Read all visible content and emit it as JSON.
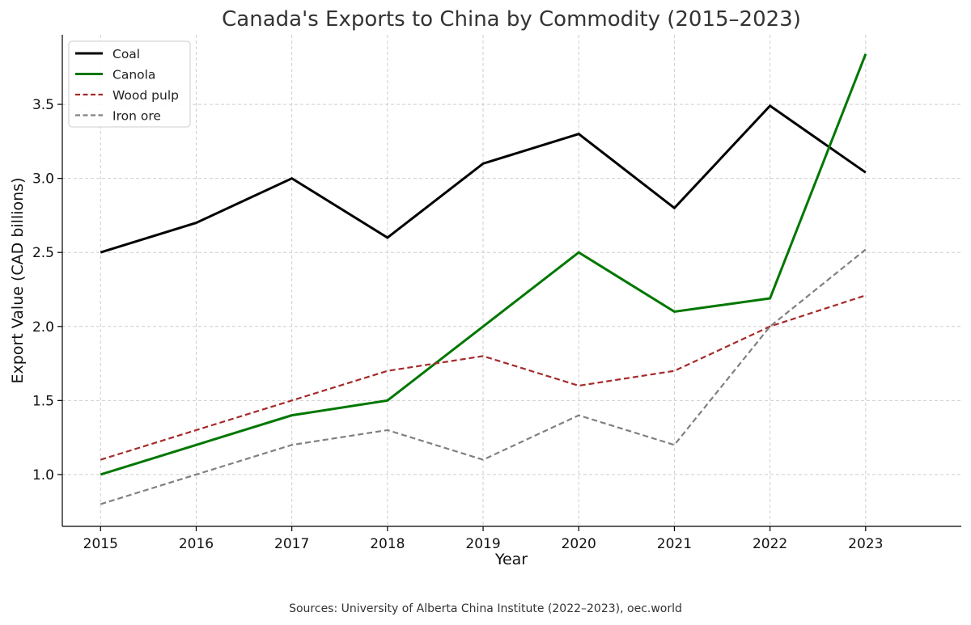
{
  "chart_data": {
    "type": "line",
    "title": "Canada's Exports to China by Commodity (2015–2023)",
    "xlabel": "Year",
    "ylabel": "Export Value (CAD billions)",
    "x": [
      2015,
      2016,
      2017,
      2018,
      2019,
      2020,
      2021,
      2022,
      2023
    ],
    "x_tick_labels": [
      "2015",
      "2016",
      "2017",
      "2018",
      "2019",
      "2020",
      "2021",
      "2022",
      "2023"
    ],
    "y_ticks": [
      1.0,
      1.5,
      2.0,
      2.5,
      3.0,
      3.5
    ],
    "y_tick_labels": [
      "1.0",
      "1.5",
      "2.0",
      "2.5",
      "3.0",
      "3.5"
    ],
    "xlim": [
      2014.6,
      2024.0
    ],
    "ylim": [
      0.65,
      3.97
    ],
    "grid": true,
    "legend_position": "top-left",
    "series": [
      {
        "name": "Coal",
        "color": "#000000",
        "style": "solid",
        "values": [
          2.5,
          2.7,
          3.0,
          2.6,
          3.1,
          3.3,
          2.8,
          3.49,
          3.04
        ]
      },
      {
        "name": "Canola",
        "color": "#007700",
        "style": "solid",
        "values": [
          1.0,
          1.2,
          1.4,
          1.5,
          2.0,
          2.5,
          2.1,
          2.19,
          3.84
        ]
      },
      {
        "name": "Wood pulp",
        "color": "#a52a2a",
        "style": "dashed",
        "values": [
          1.1,
          1.3,
          1.5,
          1.7,
          1.8,
          1.6,
          1.7,
          2.0,
          2.21
        ]
      },
      {
        "name": "Iron ore",
        "color": "#808080",
        "style": "dashed",
        "values": [
          0.8,
          1.0,
          1.2,
          1.3,
          1.1,
          1.4,
          1.2,
          2.0,
          2.52
        ]
      }
    ],
    "source_note": "Sources: University of Alberta China Institute (2022–2023), oec.world"
  }
}
